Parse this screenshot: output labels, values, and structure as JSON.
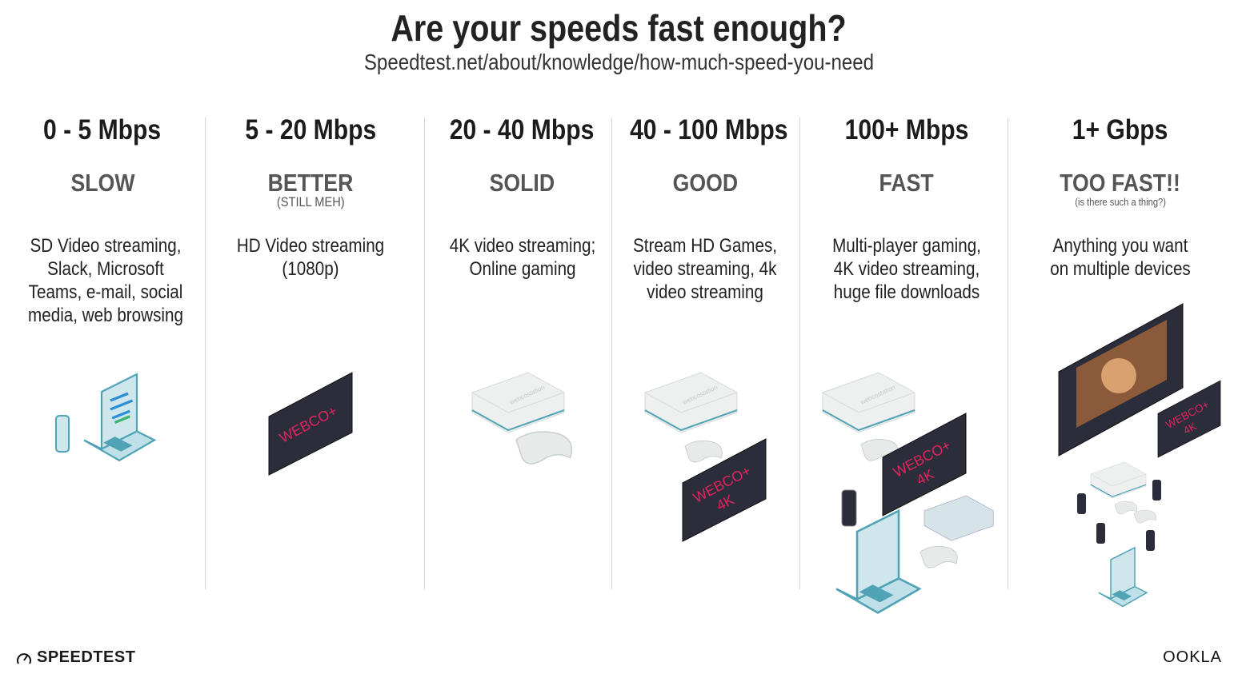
{
  "title": "Are your speeds fast enough?",
  "subtitle": "Speedtest.net/about/knowledge/how-much-speed-you-need",
  "tiers": [
    {
      "speed": "0 - 5 Mbps",
      "rating": "SLOW",
      "note": "",
      "description": "SD Video streaming, Slack, Microsoft Teams, e-mail, social media, web browsing",
      "devices": [
        "laptop",
        "phone"
      ]
    },
    {
      "speed": "5 - 20 Mbps",
      "rating": "BETTER",
      "note": "(STILL MEH)",
      "description": "HD Video streaming (1080p)",
      "devices": [
        "tv"
      ]
    },
    {
      "speed": "20 - 40 Mbps",
      "rating": "SOLID",
      "note": "",
      "description": "4K video streaming; Online gaming",
      "devices": [
        "game-console",
        "controller"
      ]
    },
    {
      "speed": "40 - 100 Mbps",
      "rating": "GOOD",
      "note": "",
      "description": "Stream HD Games, video streaming, 4k video streaming",
      "devices": [
        "game-console",
        "controller",
        "tv-4k"
      ]
    },
    {
      "speed": "100+ Mbps",
      "rating": "FAST",
      "note": "",
      "description": "Multi-player gaming, 4K video streaming, huge file downloads",
      "devices": [
        "game-console",
        "controller",
        "tv-4k",
        "phone",
        "laptop",
        "game-console"
      ]
    },
    {
      "speed": "1+ Gbps",
      "rating": "TOO FAST!!",
      "note": "(is there such a thing?)",
      "description": "Anything you want on multiple devices",
      "devices": [
        "tv-large",
        "tv-4k",
        "game-console",
        "phones",
        "laptop"
      ]
    }
  ],
  "tv_brand": "WEBCO+",
  "tv_badge": "4K",
  "console_brand": "webcostation",
  "logos": {
    "left": "SPEEDTEST",
    "right": "OOKLA"
  },
  "colors": {
    "tv_screen": "#2b2d3a",
    "tv_brand": "#e0245e",
    "device_teal": "#4fa3b5",
    "divider": "#cfd6d8"
  }
}
